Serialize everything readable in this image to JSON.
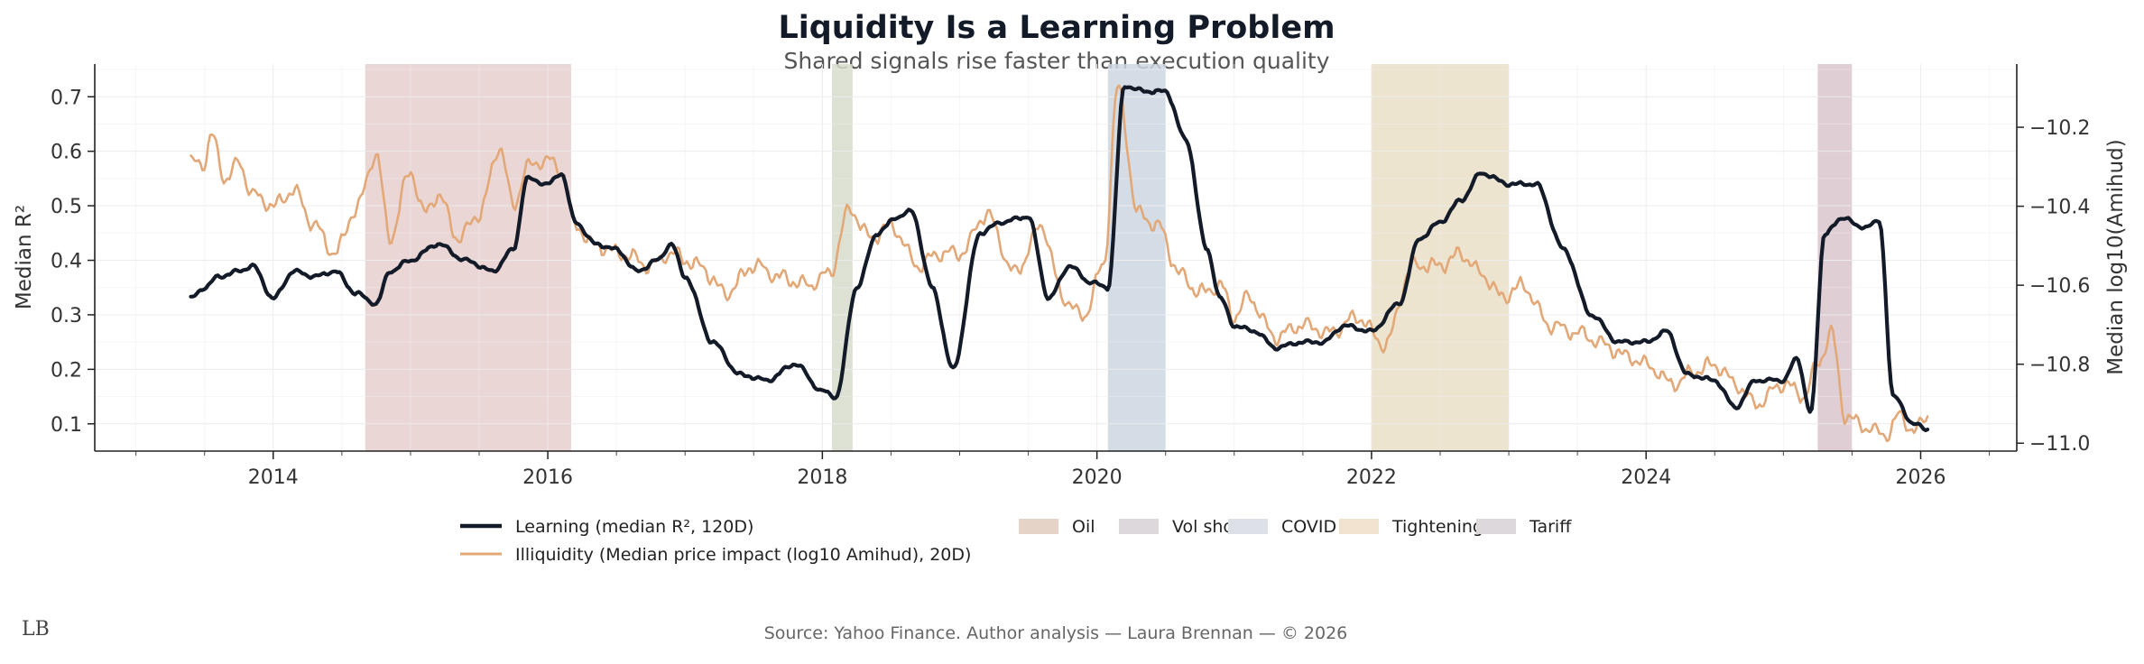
{
  "chart_data": {
    "type": "line",
    "title": "Liquidity Is a Learning Problem",
    "subtitle": "Shared signals rise faster than execution quality",
    "ylabel": "Median R²",
    "ylabel_right": "Median log10(Amihud)",
    "ylim": [
      0.05,
      0.76
    ],
    "ylim_right": [
      -11.02,
      -10.04
    ],
    "xlim": [
      2012.7,
      2026.7
    ],
    "x_ticks": [
      {
        "value": 2014,
        "label": "2014"
      },
      {
        "value": 2016,
        "label": "2016"
      },
      {
        "value": 2018,
        "label": "2018"
      },
      {
        "value": 2020,
        "label": "2020"
      },
      {
        "value": 2022,
        "label": "2022"
      },
      {
        "value": 2024,
        "label": "2024"
      },
      {
        "value": 2026,
        "label": "2026"
      }
    ],
    "y_ticks": [
      {
        "value": 0.1,
        "label": "0.1"
      },
      {
        "value": 0.2,
        "label": "0.2"
      },
      {
        "value": 0.3,
        "label": "0.3"
      },
      {
        "value": 0.4,
        "label": "0.4"
      },
      {
        "value": 0.5,
        "label": "0.5"
      },
      {
        "value": 0.6,
        "label": "0.6"
      },
      {
        "value": 0.7,
        "label": "0.7"
      }
    ],
    "y_ticks_right": [
      {
        "value": -10.2,
        "label": "−10.2"
      },
      {
        "value": -10.4,
        "label": "−10.4"
      },
      {
        "value": -10.6,
        "label": "−10.6"
      },
      {
        "value": -10.8,
        "label": "−10.8"
      },
      {
        "value": -11.0,
        "label": "−11.0"
      }
    ],
    "shaded_regions": [
      {
        "name": "Oil",
        "start": 2014.67,
        "end": 2016.17,
        "color": "#e6cfcd"
      },
      {
        "name": "Vol shock",
        "start": 2018.07,
        "end": 2018.22,
        "color": "#d7dccd"
      },
      {
        "name": "COVID",
        "start": 2020.08,
        "end": 2020.5,
        "color": "#ccd7e2"
      },
      {
        "name": "Tightening",
        "start": 2022.0,
        "end": 2023.0,
        "color": "#eadfc7"
      },
      {
        "name": "Tariff",
        "start": 2025.25,
        "end": 2025.5,
        "color": "#d9c6cd"
      }
    ],
    "series": [
      {
        "name": "Learning (median R², 120D)",
        "axis": "left",
        "color": "#131a28",
        "x": [
          2013.4,
          2013.5,
          2013.6,
          2013.75,
          2013.85,
          2014.0,
          2014.15,
          2014.3,
          2014.45,
          2014.6,
          2014.75,
          2014.85,
          2015.0,
          2015.2,
          2015.4,
          2015.6,
          2015.75,
          2015.85,
          2016.0,
          2016.1,
          2016.2,
          2016.35,
          2016.5,
          2016.65,
          2016.8,
          2016.9,
          2017.0,
          2017.2,
          2017.4,
          2017.6,
          2017.8,
          2018.0,
          2018.1,
          2018.25,
          2018.4,
          2018.55,
          2018.65,
          2018.8,
          2018.95,
          2019.15,
          2019.3,
          2019.5,
          2019.65,
          2019.8,
          2019.95,
          2020.08,
          2020.2,
          2020.35,
          2020.5,
          2020.65,
          2020.8,
          2020.9,
          2021.0,
          2021.15,
          2021.3,
          2021.5,
          2021.65,
          2021.8,
          2022.0,
          2022.2,
          2022.35,
          2022.5,
          2022.65,
          2022.8,
          2023.0,
          2023.2,
          2023.4,
          2023.6,
          2023.8,
          2024.0,
          2024.15,
          2024.3,
          2024.5,
          2024.65,
          2024.8,
          2025.0,
          2025.1,
          2025.2,
          2025.3,
          2025.45,
          2025.55,
          2025.7,
          2025.8,
          2025.95,
          2026.05
        ],
        "values": [
          0.33,
          0.35,
          0.37,
          0.38,
          0.39,
          0.33,
          0.38,
          0.37,
          0.38,
          0.34,
          0.32,
          0.38,
          0.4,
          0.43,
          0.4,
          0.38,
          0.42,
          0.55,
          0.54,
          0.56,
          0.47,
          0.43,
          0.42,
          0.38,
          0.4,
          0.43,
          0.37,
          0.25,
          0.19,
          0.18,
          0.21,
          0.16,
          0.15,
          0.35,
          0.45,
          0.48,
          0.49,
          0.35,
          0.2,
          0.45,
          0.47,
          0.48,
          0.33,
          0.39,
          0.36,
          0.35,
          0.72,
          0.71,
          0.71,
          0.62,
          0.42,
          0.33,
          0.28,
          0.27,
          0.24,
          0.25,
          0.25,
          0.28,
          0.27,
          0.32,
          0.44,
          0.47,
          0.51,
          0.56,
          0.54,
          0.54,
          0.42,
          0.3,
          0.25,
          0.25,
          0.27,
          0.19,
          0.18,
          0.13,
          0.18,
          0.18,
          0.22,
          0.12,
          0.45,
          0.48,
          0.46,
          0.47,
          0.15,
          0.1,
          0.09
        ]
      },
      {
        "name": "Illiquidity (Median price impact (log10 Amihud), 20D)",
        "axis": "right",
        "color": "#e3a878",
        "x": [
          2013.4,
          2013.5,
          2013.55,
          2013.65,
          2013.75,
          2013.85,
          2014.0,
          2014.15,
          2014.3,
          2014.45,
          2014.6,
          2014.75,
          2014.85,
          2015.0,
          2015.1,
          2015.2,
          2015.35,
          2015.5,
          2015.65,
          2015.75,
          2015.85,
          2016.0,
          2016.1,
          2016.2,
          2016.35,
          2016.55,
          2016.75,
          2016.9,
          2017.1,
          2017.3,
          2017.5,
          2017.7,
          2017.9,
          2018.05,
          2018.2,
          2018.35,
          2018.5,
          2018.7,
          2018.85,
          2019.0,
          2019.2,
          2019.4,
          2019.6,
          2019.75,
          2019.9,
          2020.05,
          2020.15,
          2020.3,
          2020.45,
          2020.6,
          2020.75,
          2020.9,
          2021.0,
          2021.1,
          2021.3,
          2021.5,
          2021.7,
          2021.9,
          2022.1,
          2022.3,
          2022.5,
          2022.65,
          2022.8,
          2022.95,
          2023.1,
          2023.3,
          2023.5,
          2023.7,
          2023.85,
          2024.0,
          2024.2,
          2024.35,
          2024.5,
          2024.65,
          2024.8,
          2025.0,
          2025.15,
          2025.25,
          2025.35,
          2025.45,
          2025.6,
          2025.75,
          2025.85,
          2025.95,
          2026.05
        ],
        "values": [
          -10.29,
          -10.29,
          -10.22,
          -10.33,
          -10.29,
          -10.37,
          -10.4,
          -10.36,
          -10.45,
          -10.52,
          -10.41,
          -10.27,
          -10.48,
          -10.31,
          -10.42,
          -10.37,
          -10.48,
          -10.42,
          -10.25,
          -10.4,
          -10.3,
          -10.28,
          -10.31,
          -10.45,
          -10.5,
          -10.52,
          -10.55,
          -10.52,
          -10.55,
          -10.62,
          -10.55,
          -10.58,
          -10.6,
          -10.57,
          -10.41,
          -10.48,
          -10.45,
          -10.55,
          -10.52,
          -10.52,
          -10.42,
          -10.57,
          -10.45,
          -10.63,
          -10.68,
          -10.55,
          -10.1,
          -10.42,
          -10.45,
          -10.57,
          -10.62,
          -10.6,
          -10.68,
          -10.63,
          -10.73,
          -10.7,
          -10.72,
          -10.68,
          -10.75,
          -10.55,
          -10.55,
          -10.52,
          -10.57,
          -10.63,
          -10.6,
          -10.7,
          -10.72,
          -10.75,
          -10.78,
          -10.8,
          -10.85,
          -10.82,
          -10.8,
          -10.85,
          -10.9,
          -10.85,
          -10.88,
          -10.8,
          -10.72,
          -10.93,
          -10.96,
          -10.98,
          -10.93,
          -10.97,
          -10.93
        ]
      }
    ]
  },
  "legend_regions_items": [
    {
      "name": "Oil",
      "color": "#e6d3c8"
    },
    {
      "name": "Vol shock",
      "color": "#dcd8dc"
    },
    {
      "name": "COVID",
      "color": "#dde0e6"
    },
    {
      "name": "Tightening",
      "color": "#f2e3d1"
    },
    {
      "name": "Tariff",
      "color": "#ddd8dc"
    }
  ],
  "source": "Source: Yahoo Finance. Author analysis — Laura Brennan — © 2026",
  "logo_text": "LB"
}
